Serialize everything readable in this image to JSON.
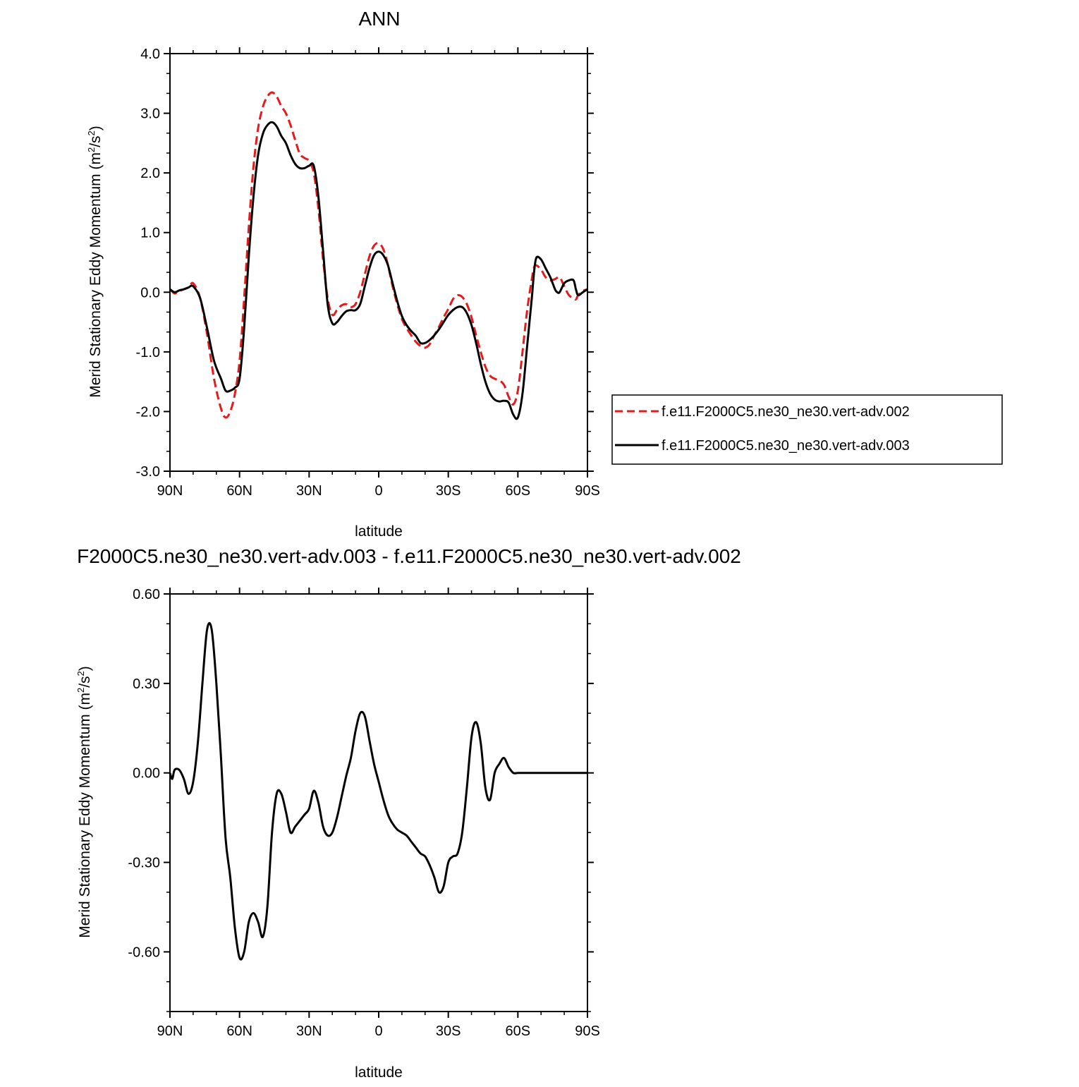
{
  "chart_data": [
    {
      "type": "line",
      "title": "ANN",
      "xlabel": "latitude",
      "ylabel": "Merid Stationary Eddy Momentum (m²/s²)",
      "xlim": [
        90,
        -90
      ],
      "ylim": [
        -3.0,
        4.0
      ],
      "xticks": [
        {
          "value": 90,
          "label": "90N"
        },
        {
          "value": 60,
          "label": "60N"
        },
        {
          "value": 30,
          "label": "30N"
        },
        {
          "value": 0,
          "label": "0"
        },
        {
          "value": -30,
          "label": "30S"
        },
        {
          "value": -60,
          "label": "60S"
        },
        {
          "value": -90,
          "label": "90S"
        }
      ],
      "yticks": [
        {
          "value": 4.0,
          "label": "4.0"
        },
        {
          "value": 3.0,
          "label": "3.0"
        },
        {
          "value": 2.0,
          "label": "2.0"
        },
        {
          "value": 1.0,
          "label": "1.0"
        },
        {
          "value": 0.0,
          "label": "0.0"
        },
        {
          "value": -1.0,
          "label": "-1.0"
        },
        {
          "value": -2.0,
          "label": "-2.0"
        },
        {
          "value": -3.0,
          "label": "-3.0"
        }
      ],
      "legend": "right",
      "series": [
        {
          "name": "f.e11.F2000C5.ne30_ne30.vert-adv.002",
          "color": "#e41a1c",
          "dash": "dashed",
          "x": [
            90,
            88,
            86,
            84,
            82,
            80,
            77,
            74,
            71,
            68,
            66,
            64,
            62,
            60,
            58,
            56,
            54,
            52,
            50,
            48,
            46,
            44,
            42,
            40,
            38,
            36,
            34,
            32,
            30,
            28,
            26,
            24,
            22,
            20,
            18,
            16,
            14,
            12,
            10,
            8,
            6,
            4,
            2,
            0,
            -2,
            -4,
            -6,
            -8,
            -10,
            -12,
            -14,
            -16,
            -18,
            -20,
            -22,
            -24,
            -26,
            -28,
            -30,
            -32,
            -34,
            -36,
            -38,
            -40,
            -42,
            -44,
            -46,
            -48,
            -50,
            -52,
            -54,
            -56,
            -58,
            -60,
            -62,
            -64,
            -66,
            -67,
            -68,
            -70,
            -72,
            -74,
            -76,
            -78,
            -80,
            -82,
            -84,
            -85,
            -86,
            -88,
            -90
          ],
          "values": [
            0.05,
            -0.02,
            0.02,
            0.05,
            0.08,
            0.15,
            -0.1,
            -0.7,
            -1.45,
            -1.95,
            -2.1,
            -2.0,
            -1.7,
            -1.15,
            -0.1,
            1.1,
            2.1,
            2.75,
            3.1,
            3.28,
            3.35,
            3.28,
            3.12,
            3.0,
            2.8,
            2.55,
            2.32,
            2.25,
            2.2,
            2.0,
            1.4,
            0.55,
            -0.1,
            -0.38,
            -0.3,
            -0.22,
            -0.2,
            -0.25,
            -0.2,
            0.0,
            0.3,
            0.6,
            0.78,
            0.82,
            0.72,
            0.45,
            0.1,
            -0.2,
            -0.45,
            -0.6,
            -0.72,
            -0.83,
            -0.9,
            -0.93,
            -0.87,
            -0.72,
            -0.58,
            -0.42,
            -0.28,
            -0.12,
            -0.05,
            -0.08,
            -0.2,
            -0.42,
            -0.72,
            -1.0,
            -1.25,
            -1.4,
            -1.45,
            -1.48,
            -1.55,
            -1.75,
            -1.88,
            -1.65,
            -1.0,
            -0.3,
            0.22,
            0.42,
            0.45,
            0.38,
            0.25,
            0.2,
            0.22,
            0.25,
            0.1,
            -0.05,
            -0.1,
            -0.12,
            -0.05,
            0.02,
            0.05
          ]
        },
        {
          "name": "f.e11.F2000C5.ne30_ne30.vert-adv.003",
          "color": "#000000",
          "dash": "solid",
          "x": [
            90,
            88,
            86,
            84,
            82,
            80,
            77,
            74,
            71,
            68,
            66,
            64,
            62,
            60,
            58,
            56,
            54,
            52,
            50,
            48,
            46,
            44,
            42,
            40,
            38,
            36,
            34,
            32,
            30,
            28,
            26,
            24,
            22,
            20,
            18,
            16,
            14,
            12,
            10,
            8,
            6,
            4,
            2,
            0,
            -2,
            -4,
            -6,
            -8,
            -10,
            -12,
            -14,
            -16,
            -18,
            -20,
            -22,
            -24,
            -26,
            -28,
            -30,
            -32,
            -34,
            -36,
            -38,
            -40,
            -42,
            -44,
            -46,
            -48,
            -50,
            -52,
            -54,
            -56,
            -58,
            -60,
            -62,
            -64,
            -66,
            -67,
            -68,
            -70,
            -72,
            -74,
            -76,
            -77,
            -78,
            -80,
            -82,
            -84,
            -85,
            -86,
            -88,
            -90
          ],
          "values": [
            0.05,
            0.0,
            0.03,
            0.05,
            0.08,
            0.1,
            -0.1,
            -0.6,
            -1.15,
            -1.45,
            -1.65,
            -1.65,
            -1.6,
            -1.45,
            -0.6,
            0.6,
            1.6,
            2.3,
            2.65,
            2.8,
            2.85,
            2.78,
            2.62,
            2.5,
            2.3,
            2.15,
            2.08,
            2.08,
            2.12,
            2.12,
            1.6,
            0.7,
            -0.2,
            -0.52,
            -0.5,
            -0.4,
            -0.32,
            -0.3,
            -0.3,
            -0.2,
            0.1,
            0.4,
            0.62,
            0.68,
            0.62,
            0.45,
            0.15,
            -0.15,
            -0.4,
            -0.55,
            -0.65,
            -0.73,
            -0.85,
            -0.85,
            -0.8,
            -0.72,
            -0.62,
            -0.5,
            -0.38,
            -0.3,
            -0.25,
            -0.25,
            -0.35,
            -0.55,
            -0.85,
            -1.2,
            -1.5,
            -1.7,
            -1.8,
            -1.83,
            -1.82,
            -1.85,
            -2.05,
            -2.1,
            -1.7,
            -0.9,
            -0.1,
            0.35,
            0.58,
            0.55,
            0.4,
            0.25,
            0.05,
            0.0,
            0.0,
            0.15,
            0.2,
            0.2,
            0.05,
            -0.05,
            0.0,
            0.05
          ]
        }
      ]
    },
    {
      "type": "line",
      "title": "F2000C5.ne30_ne30.vert-adv.003 - f.e11.F2000C5.ne30_ne30.vert-adv.002",
      "xlabel": "latitude",
      "ylabel": "Merid Stationary Eddy Momentum (m²/s²)",
      "xlim": [
        90,
        -90
      ],
      "ylim": [
        -0.8,
        0.6
      ],
      "xticks": [
        {
          "value": 90,
          "label": "90N"
        },
        {
          "value": 60,
          "label": "60N"
        },
        {
          "value": 30,
          "label": "30N"
        },
        {
          "value": 0,
          "label": "0"
        },
        {
          "value": -30,
          "label": "30S"
        },
        {
          "value": -60,
          "label": "60S"
        },
        {
          "value": -90,
          "label": "90S"
        }
      ],
      "yticks": [
        {
          "value": 0.6,
          "label": "0.60"
        },
        {
          "value": 0.3,
          "label": "0.30"
        },
        {
          "value": 0.0,
          "label": "0.00"
        },
        {
          "value": -0.3,
          "label": "-0.30"
        },
        {
          "value": -0.6,
          "label": "-0.60"
        }
      ],
      "series": [
        {
          "color": "#000000",
          "dash": "solid",
          "x": [
            90,
            89,
            88,
            86,
            84,
            82,
            80,
            78,
            76,
            74,
            72,
            70,
            68,
            66,
            64,
            62,
            60,
            58,
            56,
            54,
            52,
            50,
            48,
            46,
            44,
            42,
            40,
            38,
            36,
            34,
            32,
            30,
            28,
            26,
            24,
            22,
            20,
            18,
            16,
            14,
            12,
            10,
            8,
            6,
            4,
            2,
            0,
            -2,
            -4,
            -6,
            -8,
            -10,
            -12,
            -14,
            -16,
            -18,
            -20,
            -22,
            -24,
            -26,
            -28,
            -30,
            -32,
            -34,
            -36,
            -38,
            -40,
            -42,
            -44,
            -46,
            -48,
            -50,
            -52,
            -54,
            -56,
            -58,
            -60,
            -62,
            -64,
            -66,
            -68,
            -70,
            -72,
            -74,
            -76,
            -78,
            -80,
            -82,
            -84,
            -86,
            -88,
            -90
          ],
          "values": [
            0.0,
            -0.02,
            0.01,
            0.01,
            -0.02,
            -0.07,
            -0.03,
            0.1,
            0.3,
            0.48,
            0.48,
            0.3,
            0.05,
            -0.22,
            -0.35,
            -0.52,
            -0.62,
            -0.6,
            -0.5,
            -0.47,
            -0.5,
            -0.55,
            -0.45,
            -0.2,
            -0.07,
            -0.07,
            -0.13,
            -0.2,
            -0.18,
            -0.16,
            -0.14,
            -0.12,
            -0.06,
            -0.1,
            -0.18,
            -0.21,
            -0.2,
            -0.15,
            -0.08,
            -0.01,
            0.05,
            0.14,
            0.2,
            0.19,
            0.11,
            0.03,
            -0.03,
            -0.09,
            -0.14,
            -0.17,
            -0.19,
            -0.2,
            -0.21,
            -0.23,
            -0.25,
            -0.27,
            -0.28,
            -0.31,
            -0.35,
            -0.4,
            -0.38,
            -0.3,
            -0.28,
            -0.27,
            -0.2,
            -0.05,
            0.12,
            0.17,
            0.1,
            -0.05,
            -0.09,
            0.0,
            0.03,
            0.05,
            0.02,
            0.0,
            0.0,
            0.0,
            0.0,
            0.0,
            0.0,
            0.0,
            0.0,
            0.0,
            0.0,
            0.0,
            0.0,
            0.0,
            0.0,
            0.0,
            0.0,
            0.0
          ]
        }
      ]
    }
  ]
}
